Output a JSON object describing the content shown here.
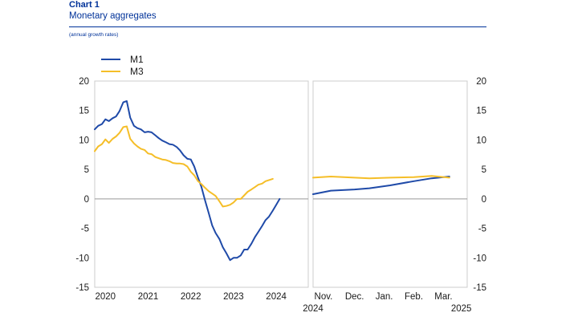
{
  "header": {
    "title": "Chart 1",
    "subtitle": "Monetary aggregates",
    "note": "(annual growth rates)"
  },
  "colors": {
    "m1": "#1f4aa8",
    "m3": "#f5be28",
    "zero_line": "#999999",
    "frame": "#cccccc"
  },
  "chart_data": {
    "type": "line",
    "title": "Monetary aggregates",
    "ylabel": "annual growth rates",
    "ylim": [
      -15,
      20
    ],
    "yticks": [
      "20",
      "15",
      "10",
      "5",
      "0",
      "-5",
      "-10",
      "-15"
    ],
    "legend": {
      "placement": "top-left",
      "entries": [
        "M1",
        "M3"
      ]
    },
    "grid": false,
    "panels": [
      {
        "name": "historical",
        "xlim": [
          2019.75,
          2024.75
        ],
        "x_tick_labels": [
          {
            "x": 2020,
            "label": "2020"
          },
          {
            "x": 2021,
            "label": "2021"
          },
          {
            "x": 2022,
            "label": "2022"
          },
          {
            "x": 2023,
            "label": "2023"
          },
          {
            "x": 2024,
            "label": "2024"
          }
        ],
        "series": [
          {
            "name": "M1",
            "x": [
              2019.75,
              2019.83,
              2019.92,
              2020.0,
              2020.08,
              2020.17,
              2020.25,
              2020.33,
              2020.42,
              2020.5,
              2020.58,
              2020.67,
              2020.75,
              2020.83,
              2020.92,
              2021.0,
              2021.08,
              2021.17,
              2021.25,
              2021.33,
              2021.42,
              2021.5,
              2021.58,
              2021.67,
              2021.75,
              2021.83,
              2021.92,
              2022.0,
              2022.08,
              2022.17,
              2022.25,
              2022.33,
              2022.42,
              2022.5,
              2022.58,
              2022.67,
              2022.75,
              2022.83,
              2022.92,
              2023.0,
              2023.08,
              2023.17,
              2023.25,
              2023.33,
              2023.42,
              2023.5,
              2023.58,
              2023.67,
              2023.75,
              2023.83,
              2023.92,
              2024.0,
              2024.08,
              2024.17,
              2024.25,
              2024.33,
              2024.42,
              2024.5,
              2024.58,
              2024.67,
              2024.75
            ],
            "values": [
              11.8,
              12.4,
              12.7,
              13.5,
              13.2,
              13.7,
              14.0,
              14.9,
              16.4,
              16.6,
              13.8,
              12.4,
              12.0,
              11.8,
              11.3,
              11.4,
              11.3,
              10.8,
              10.3,
              9.9,
              9.6,
              9.3,
              9.2,
              8.8,
              8.2,
              7.4,
              6.8,
              6.7,
              5.5,
              3.6,
              2.0,
              -0.2,
              -2.4,
              -4.5,
              -5.8,
              -6.8,
              -8.2,
              -9.2,
              -10.4,
              -10.0,
              -10.0,
              -9.6,
              -8.6,
              -8.6,
              -7.6,
              -6.5,
              -5.6,
              -4.6,
              -3.6,
              -3.0,
              -2.0,
              -1.0,
              0.0,
              null,
              null,
              null,
              null,
              null,
              null,
              null,
              null
            ]
          },
          {
            "name": "M3",
            "x": [
              2019.75,
              2019.83,
              2019.92,
              2020.0,
              2020.08,
              2020.17,
              2020.25,
              2020.33,
              2020.42,
              2020.5,
              2020.58,
              2020.67,
              2020.75,
              2020.83,
              2020.92,
              2021.0,
              2021.08,
              2021.17,
              2021.25,
              2021.33,
              2021.42,
              2021.5,
              2021.58,
              2021.67,
              2021.75,
              2021.83,
              2021.92,
              2022.0,
              2022.08,
              2022.17,
              2022.25,
              2022.33,
              2022.42,
              2022.5,
              2022.58,
              2022.67,
              2022.75,
              2022.83,
              2022.92,
              2023.0,
              2023.08,
              2023.17,
              2023.25,
              2023.33,
              2023.42,
              2023.5,
              2023.58,
              2023.67,
              2023.75,
              2023.83,
              2023.92,
              2024.0,
              2024.08,
              2024.17,
              2024.25,
              2024.33,
              2024.42,
              2024.5,
              2024.58,
              2024.67,
              2024.75
            ],
            "values": [
              8.1,
              8.9,
              9.3,
              10.1,
              9.5,
              10.2,
              10.6,
              11.2,
              12.2,
              12.3,
              10.2,
              9.4,
              8.9,
              8.5,
              8.3,
              7.7,
              7.6,
              7.1,
              6.9,
              6.7,
              6.6,
              6.4,
              6.1,
              6.0,
              6.0,
              5.9,
              5.5,
              4.6,
              4.0,
              3.0,
              2.5,
              1.9,
              1.3,
              0.9,
              0.5,
              -0.4,
              -1.3,
              -1.2,
              -1.0,
              -0.6,
              0.0,
              0.0,
              0.6,
              1.2,
              1.6,
              2.0,
              2.4,
              2.6,
              3.0,
              3.2,
              3.4,
              null,
              null,
              null,
              null,
              null,
              null,
              null,
              null,
              null,
              null
            ]
          }
        ]
      },
      {
        "name": "recent",
        "xlim": [
          0,
          5.2
        ],
        "x_tick_labels": [
          {
            "x": 0.35,
            "label": "Nov."
          },
          {
            "x": 1.4,
            "label": "Dec."
          },
          {
            "x": 2.4,
            "label": "Jan."
          },
          {
            "x": 3.4,
            "label": "Feb."
          },
          {
            "x": 4.4,
            "label": "Mar."
          }
        ],
        "x_year_labels": [
          {
            "x": 0.0,
            "label": "2024"
          },
          {
            "x": 5.0,
            "label": "2025"
          }
        ],
        "series": [
          {
            "name": "M1",
            "x": [
              0,
              0.6,
              1.4,
              1.9,
              2.6,
              3.4,
              4.0,
              4.6
            ],
            "values": [
              0.8,
              1.4,
              1.6,
              1.8,
              2.3,
              3.0,
              3.5,
              3.8
            ]
          },
          {
            "name": "M3",
            "x": [
              0,
              0.6,
              1.4,
              1.9,
              2.6,
              3.4,
              4.0,
              4.6
            ],
            "values": [
              3.6,
              3.8,
              3.6,
              3.5,
              3.6,
              3.7,
              3.9,
              3.6
            ]
          }
        ]
      }
    ]
  }
}
